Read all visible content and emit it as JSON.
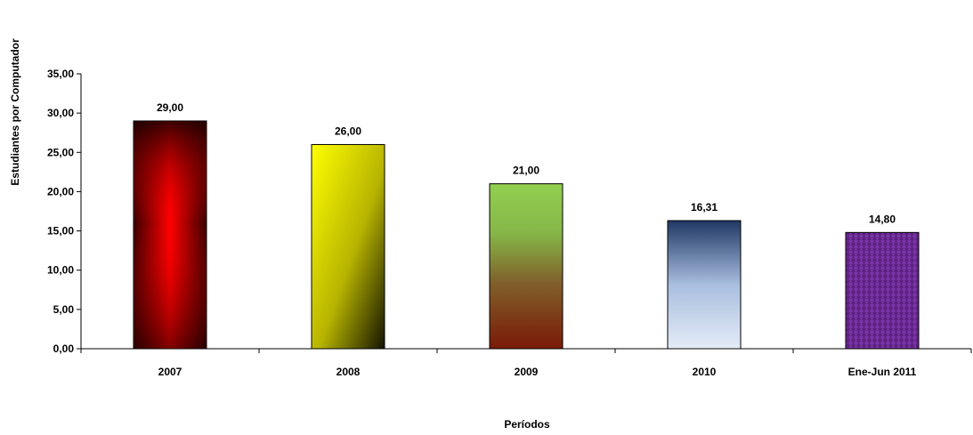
{
  "chart_data": {
    "type": "bar",
    "title": "",
    "xlabel": "Períodos",
    "ylabel": "Estudiantes por Computador",
    "categories": [
      "2007",
      "2008",
      "2009",
      "2010",
      "Ene-Jun 2011"
    ],
    "values": [
      29.0,
      26.0,
      21.0,
      16.31,
      14.8
    ],
    "value_labels": [
      "29,00",
      "26,00",
      "21,00",
      "16,31",
      "14,80"
    ],
    "ylim": [
      0,
      35
    ],
    "yticks": [
      0,
      5,
      10,
      15,
      20,
      25,
      30,
      35
    ],
    "ytick_labels": [
      "0,00",
      "5,00",
      "10,00",
      "15,00",
      "20,00",
      "25,00",
      "30,00",
      "35,00"
    ],
    "grid": false,
    "legend": "none",
    "bar_colors": [
      "#ff0000",
      "#ffff00",
      "#92d050",
      "#1f3864",
      "#7030a0"
    ]
  }
}
